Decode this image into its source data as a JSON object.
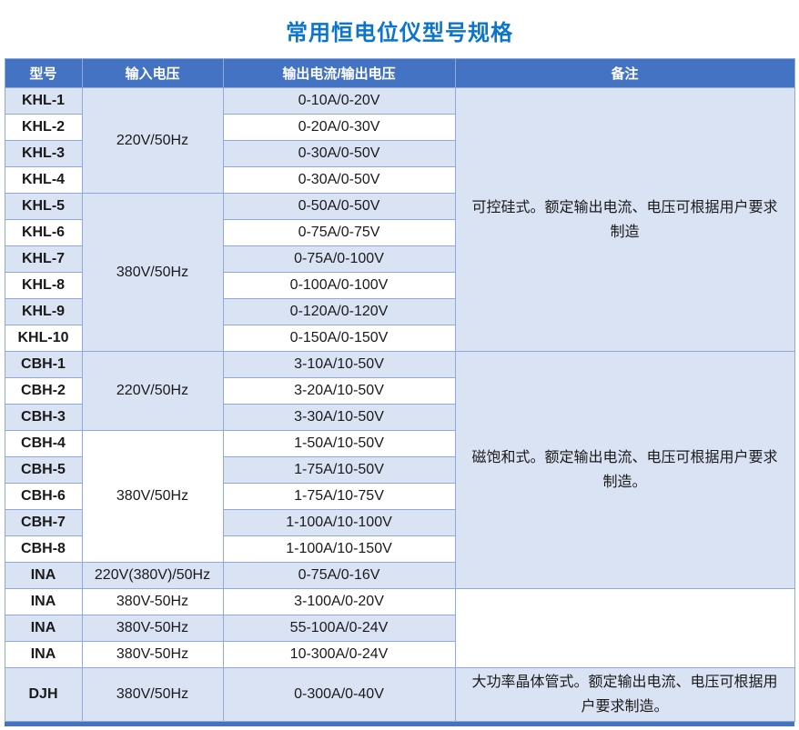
{
  "title": "常用恒电位仪型号规格",
  "colors": {
    "header_bg": "#4573C4",
    "row_shade": "#DAE3F3",
    "border": "#8EAADB",
    "title_color": "#0B74CC",
    "header_text": "#FFFFFF",
    "cell_text": "#1A1A1A"
  },
  "table": {
    "headers": [
      "型号",
      "输入电压",
      "输出电流/输出电压",
      "备注"
    ],
    "rows": [
      {
        "cells": [
          {
            "col": "model",
            "text": "KHL-1",
            "shade": true
          },
          {
            "col": "input",
            "text": "220V/50Hz",
            "rowspan": 4,
            "shade": true
          },
          {
            "col": "output",
            "text": "0-10A/0-20V",
            "shade": true
          },
          {
            "col": "remark",
            "text": "可控硅式。额定输出电流、电压可根据用户要求\n制造",
            "rowspan": 10,
            "shade": true
          }
        ]
      },
      {
        "cells": [
          {
            "col": "model",
            "text": "KHL-2"
          },
          {
            "col": "output",
            "text": "0-20A/0-30V"
          }
        ]
      },
      {
        "cells": [
          {
            "col": "model",
            "text": "KHL-3",
            "shade": true
          },
          {
            "col": "output",
            "text": "0-30A/0-50V",
            "shade": true
          }
        ]
      },
      {
        "cells": [
          {
            "col": "model",
            "text": "KHL-4"
          },
          {
            "col": "output",
            "text": "0-30A/0-50V"
          }
        ]
      },
      {
        "cells": [
          {
            "col": "model",
            "text": "KHL-5",
            "shade": true
          },
          {
            "col": "input",
            "text": "380V/50Hz",
            "rowspan": 6,
            "shade": true
          },
          {
            "col": "output",
            "text": "0-50A/0-50V",
            "shade": true
          }
        ]
      },
      {
        "cells": [
          {
            "col": "model",
            "text": "KHL-6"
          },
          {
            "col": "output",
            "text": "0-75A/0-75V"
          }
        ]
      },
      {
        "cells": [
          {
            "col": "model",
            "text": "KHL-7",
            "shade": true
          },
          {
            "col": "output",
            "text": "0-75A/0-100V",
            "shade": true
          }
        ]
      },
      {
        "cells": [
          {
            "col": "model",
            "text": "KHL-8"
          },
          {
            "col": "output",
            "text": "0-100A/0-100V"
          }
        ]
      },
      {
        "cells": [
          {
            "col": "model",
            "text": "KHL-9",
            "shade": true
          },
          {
            "col": "output",
            "text": "0-120A/0-120V",
            "shade": true
          }
        ]
      },
      {
        "cells": [
          {
            "col": "model",
            "text": "KHL-10"
          },
          {
            "col": "output",
            "text": "0-150A/0-150V"
          }
        ]
      },
      {
        "cells": [
          {
            "col": "model",
            "text": "CBH-1",
            "shade": true
          },
          {
            "col": "input",
            "text": "220V/50Hz",
            "rowspan": 3,
            "shade": true
          },
          {
            "col": "output",
            "text": "3-10A/10-50V",
            "shade": true
          },
          {
            "col": "remark",
            "text": "磁饱和式。额定输出电流、电压可根据用户要求\n制造。",
            "rowspan": 9,
            "shade": true
          }
        ]
      },
      {
        "cells": [
          {
            "col": "model",
            "text": "CBH-2"
          },
          {
            "col": "output",
            "text": "3-20A/10-50V"
          }
        ]
      },
      {
        "cells": [
          {
            "col": "model",
            "text": "CBH-3",
            "shade": true
          },
          {
            "col": "output",
            "text": "3-30A/10-50V",
            "shade": true
          }
        ]
      },
      {
        "cells": [
          {
            "col": "model",
            "text": "CBH-4"
          },
          {
            "col": "input",
            "text": "380V/50Hz",
            "rowspan": 5
          },
          {
            "col": "output",
            "text": "1-50A/10-50V"
          }
        ]
      },
      {
        "cells": [
          {
            "col": "model",
            "text": "CBH-5",
            "shade": true
          },
          {
            "col": "output",
            "text": "1-75A/10-50V",
            "shade": true
          }
        ]
      },
      {
        "cells": [
          {
            "col": "model",
            "text": "CBH-6"
          },
          {
            "col": "output",
            "text": "1-75A/10-75V"
          }
        ]
      },
      {
        "cells": [
          {
            "col": "model",
            "text": "CBH-7",
            "shade": true
          },
          {
            "col": "output",
            "text": "1-100A/10-100V",
            "shade": true
          }
        ]
      },
      {
        "cells": [
          {
            "col": "model",
            "text": "CBH-8"
          },
          {
            "col": "output",
            "text": "1-100A/10-150V"
          }
        ]
      },
      {
        "cells": [
          {
            "col": "model",
            "text": "INA",
            "shade": true
          },
          {
            "col": "input",
            "text": "220V(380V)/50Hz",
            "shade": true
          },
          {
            "col": "output",
            "text": "0-75A/0-16V",
            "shade": true
          }
        ]
      },
      {
        "cells": [
          {
            "col": "model",
            "text": "INA"
          },
          {
            "col": "input",
            "text": "380V-50Hz"
          },
          {
            "col": "output",
            "text": "3-100A/0-20V"
          },
          {
            "col": "remark",
            "text": "",
            "rowspan": 3
          }
        ]
      },
      {
        "cells": [
          {
            "col": "model",
            "text": "INA",
            "shade": true
          },
          {
            "col": "input",
            "text": "380V-50Hz",
            "shade": true
          },
          {
            "col": "output",
            "text": "55-100A/0-24V",
            "shade": true
          }
        ]
      },
      {
        "cells": [
          {
            "col": "model",
            "text": "INA"
          },
          {
            "col": "input",
            "text": "380V-50Hz"
          },
          {
            "col": "output",
            "text": "10-300A/0-24V"
          }
        ]
      },
      {
        "tall": true,
        "cells": [
          {
            "col": "model",
            "text": "DJH",
            "shade": true
          },
          {
            "col": "input",
            "text": "380V/50Hz",
            "shade": true
          },
          {
            "col": "output",
            "text": "0-300A/0-40V",
            "shade": true
          },
          {
            "col": "remark",
            "text": "大功率晶体管式。额定输出电流、电压可根据用\n户要求制造。",
            "shade": true
          }
        ]
      }
    ]
  }
}
